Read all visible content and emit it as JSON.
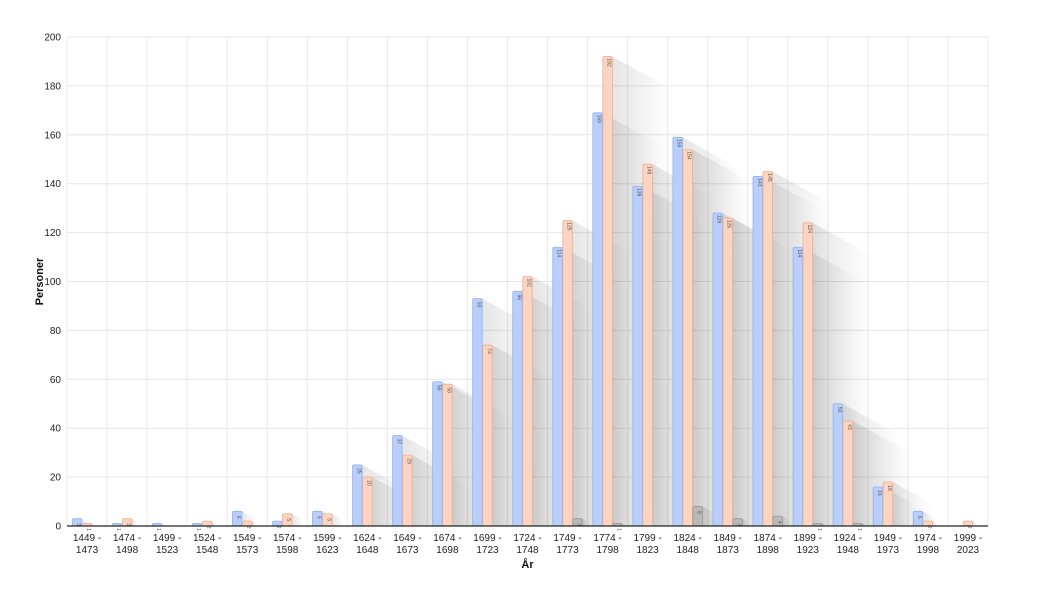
{
  "chart_data": {
    "type": "bar",
    "title": "",
    "xlabel": "År",
    "ylabel": "Personer",
    "ylim": [
      0,
      200
    ],
    "yticks": [
      0,
      20,
      40,
      60,
      80,
      100,
      120,
      140,
      160,
      180,
      200
    ],
    "grid": true,
    "categories": [
      [
        "1449 -",
        "1473"
      ],
      [
        "1474 -",
        "1498"
      ],
      [
        "1499 -",
        "1523"
      ],
      [
        "1524 -",
        "1548"
      ],
      [
        "1549 -",
        "1573"
      ],
      [
        "1574 -",
        "1598"
      ],
      [
        "1599 -",
        "1623"
      ],
      [
        "1624 -",
        "1648"
      ],
      [
        "1649 -",
        "1673"
      ],
      [
        "1674 -",
        "1698"
      ],
      [
        "1699 -",
        "1723"
      ],
      [
        "1724 -",
        "1748"
      ],
      [
        "1749 -",
        "1773"
      ],
      [
        "1774 -",
        "1798"
      ],
      [
        "1799 -",
        "1823"
      ],
      [
        "1824 -",
        "1848"
      ],
      [
        "1849 -",
        "1873"
      ],
      [
        "1874 -",
        "1898"
      ],
      [
        "1899 -",
        "1923"
      ],
      [
        "1924 -",
        "1948"
      ],
      [
        "1949 -",
        "1973"
      ],
      [
        "1974 -",
        "1998"
      ],
      [
        "1999 -",
        "2023"
      ]
    ],
    "series": [
      {
        "color": "#b9cffb",
        "stroke": "#8fb0ef",
        "values": [
          3,
          1,
          1,
          1,
          6,
          2,
          6,
          25,
          37,
          59,
          93,
          96,
          114,
          169,
          139,
          159,
          128,
          143,
          114,
          50,
          16,
          6,
          0
        ]
      },
      {
        "color": "#fcd4c1",
        "stroke": "#eeae92",
        "values": [
          1,
          3,
          0,
          2,
          2,
          5,
          5,
          20,
          29,
          58,
          74,
          102,
          125,
          192,
          148,
          154,
          126,
          145,
          124,
          43,
          18,
          2,
          2
        ]
      },
      {
        "color": "#b9b9b9",
        "stroke": "#9a9a9a",
        "values": [
          0,
          0,
          0,
          0,
          0,
          0,
          0,
          0,
          0,
          0,
          0,
          0,
          3,
          1,
          0,
          8,
          3,
          4,
          1,
          1,
          0,
          0,
          0
        ]
      }
    ]
  }
}
